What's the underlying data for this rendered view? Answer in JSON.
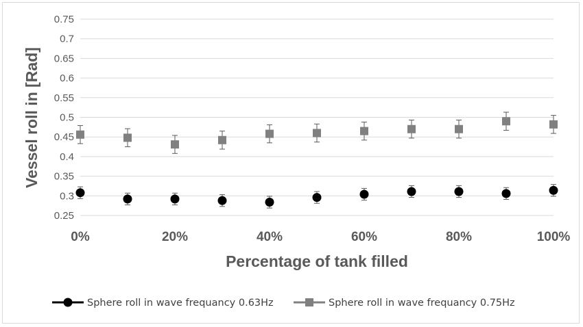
{
  "chart_data": {
    "type": "scatter",
    "title": "",
    "xlabel": "Percentage of tank filled",
    "ylabel": "Vessel roll in [Rad]",
    "x": [
      0,
      10,
      20,
      30,
      40,
      50,
      60,
      70,
      80,
      90,
      100
    ],
    "x_tick_labels": [
      "0%",
      "20%",
      "40%",
      "60%",
      "80%",
      "100%"
    ],
    "x_tick_values": [
      0,
      20,
      40,
      60,
      80,
      100
    ],
    "xlim": [
      0,
      100
    ],
    "ylim": [
      0.25,
      0.75
    ],
    "y_ticks": [
      "0.25",
      "0.3",
      "0.35",
      "0.4",
      "0.45",
      "0.5",
      "0.55",
      "0.6",
      "0.65",
      "0.7",
      "0.75"
    ],
    "grid": "horizontal",
    "legend_position": "bottom",
    "series": [
      {
        "name": "Sphere roll in wave frequancy 0.63Hz",
        "marker": "circle",
        "color": "#000000",
        "values": [
          0.308,
          0.292,
          0.292,
          0.288,
          0.284,
          0.296,
          0.304,
          0.311,
          0.311,
          0.306,
          0.314
        ],
        "error": [
          0.015,
          0.015,
          0.015,
          0.015,
          0.015,
          0.015,
          0.015,
          0.015,
          0.015,
          0.015,
          0.015
        ]
      },
      {
        "name": "Sphere roll in wave frequancy 0.75Hz",
        "marker": "square",
        "color": "#808080",
        "values": [
          0.456,
          0.448,
          0.431,
          0.442,
          0.458,
          0.46,
          0.465,
          0.47,
          0.47,
          0.49,
          0.482
        ],
        "error": [
          0.023,
          0.023,
          0.023,
          0.023,
          0.023,
          0.023,
          0.023,
          0.023,
          0.023,
          0.023,
          0.023
        ]
      }
    ]
  }
}
